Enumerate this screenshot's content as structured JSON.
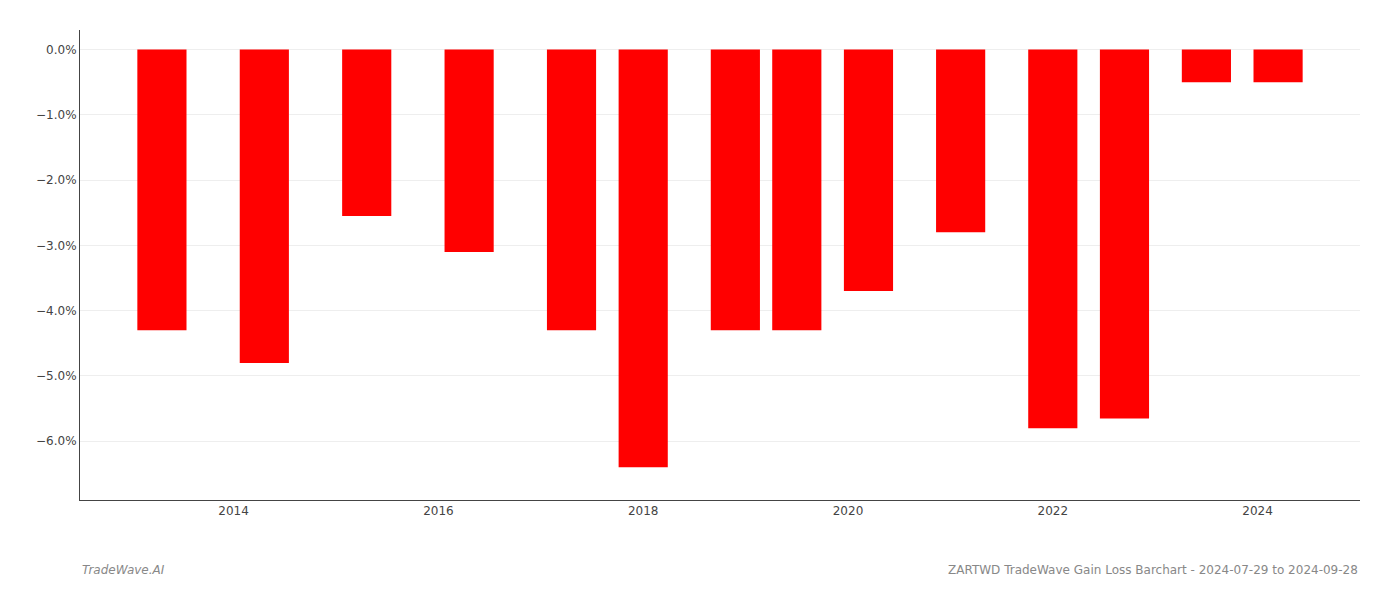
{
  "chart_data": {
    "type": "bar",
    "x": [
      2013.3,
      2014.3,
      2015.3,
      2016.3,
      2017.3,
      2018.0,
      2018.9,
      2019.5,
      2020.2,
      2021.1,
      2022.0,
      2022.7,
      2023.5,
      2024.2
    ],
    "values": [
      -4.3,
      -4.8,
      -2.55,
      -3.1,
      -4.3,
      -6.4,
      -4.3,
      -4.3,
      -3.7,
      -2.8,
      -5.8,
      -5.65,
      -0.5,
      -0.5
    ],
    "color": "#ff0000",
    "xlim": [
      2012.5,
      2025.0
    ],
    "xticks": [
      2014,
      2016,
      2018,
      2020,
      2022,
      2024
    ],
    "ylim": [
      -6.9,
      0.3
    ],
    "yticks": [
      {
        "value": 0.0,
        "label": "0.0%"
      },
      {
        "value": -1.0,
        "label": "−1.0%"
      },
      {
        "value": -2.0,
        "label": "−2.0%"
      },
      {
        "value": -3.0,
        "label": "−3.0%"
      },
      {
        "value": -4.0,
        "label": "−4.0%"
      },
      {
        "value": -5.0,
        "label": "−5.0%"
      },
      {
        "value": -6.0,
        "label": "−6.0%"
      }
    ],
    "grid": "y",
    "annotations": [
      "TradeWave.AI",
      "ZARTWD TradeWave Gain Loss Barchart - 2024-07-29 to 2024-09-28"
    ]
  }
}
